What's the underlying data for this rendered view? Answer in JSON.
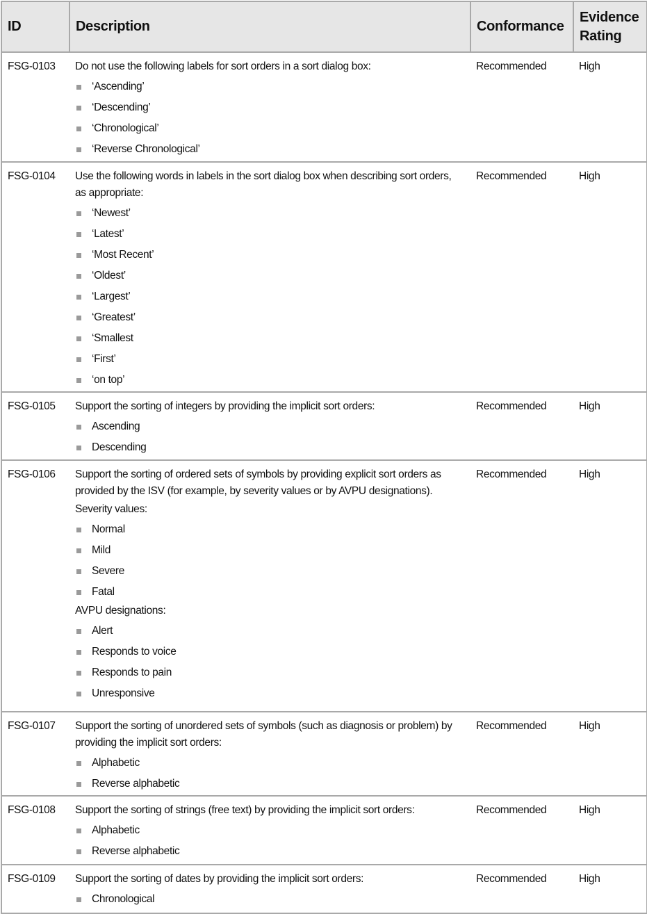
{
  "header": {
    "id": "ID",
    "description": "Description",
    "conformance": "Conformance",
    "evidence_rating": "Evidence Rating"
  },
  "rows": [
    {
      "id": "FSG-0103",
      "conformance": "Recommended",
      "rating": "High",
      "blocks": [
        {
          "type": "p",
          "text": "Do not use the following labels for sort orders in a sort dialog box:"
        },
        {
          "type": "bullets",
          "items": [
            "‘Ascending’",
            "‘Descending’",
            "‘Chronological’",
            "‘Reverse Chronological’"
          ]
        }
      ]
    },
    {
      "id": "FSG-0104",
      "conformance": "Recommended",
      "rating": "High",
      "blocks": [
        {
          "type": "p",
          "text": "Use the following words in labels in the sort dialog box when describing sort orders, as appropriate:"
        },
        {
          "type": "bullets",
          "items": [
            "‘Newest’",
            "‘Latest’",
            "‘Most Recent’",
            "‘Oldest’",
            "‘Largest’",
            "‘Greatest’",
            "‘Smallest",
            "‘First’",
            "‘on top’"
          ]
        }
      ]
    },
    {
      "id": "FSG-0105",
      "conformance": "Recommended",
      "rating": "High",
      "blocks": [
        {
          "type": "p",
          "text": "Support the sorting of integers by providing the implicit sort orders:"
        },
        {
          "type": "bullets",
          "items": [
            "Ascending",
            "Descending"
          ]
        }
      ]
    },
    {
      "id": "FSG-0106",
      "conformance": "Recommended",
      "rating": "High",
      "blocks": [
        {
          "type": "p",
          "text": "Support the sorting of ordered sets of symbols by providing explicit sort orders as provided by the ISV (for example, by severity values or by AVPU designations)."
        },
        {
          "type": "p",
          "text": "Severity values:"
        },
        {
          "type": "bullets",
          "items": [
            "Normal",
            "Mild",
            "Severe",
            "Fatal"
          ]
        },
        {
          "type": "p",
          "text": "AVPU designations:"
        },
        {
          "type": "bullets",
          "items": [
            "Alert",
            "Responds to voice",
            "Responds to pain",
            "Unresponsive"
          ]
        }
      ]
    },
    {
      "id": "FSG-0107",
      "conformance": "Recommended",
      "rating": "High",
      "blocks": [
        {
          "type": "p",
          "text": "Support the sorting of unordered sets of symbols (such as diagnosis or problem) by providing the implicit sort orders:"
        },
        {
          "type": "bullets",
          "items": [
            "Alphabetic",
            "Reverse alphabetic"
          ]
        }
      ]
    },
    {
      "id": "FSG-0108",
      "conformance": "Recommended",
      "rating": "High",
      "blocks": [
        {
          "type": "p",
          "text": "Support the sorting of strings (free text) by providing the implicit sort orders:"
        },
        {
          "type": "bullets",
          "items": [
            "Alphabetic",
            "Reverse alphabetic"
          ]
        }
      ]
    },
    {
      "id": "FSG-0109",
      "conformance": "Recommended",
      "rating": "High",
      "blocks": [
        {
          "type": "p",
          "text": "Support the sorting of dates by providing the implicit sort orders:"
        },
        {
          "type": "bullets",
          "items": [
            "Chronological"
          ]
        }
      ]
    }
  ]
}
